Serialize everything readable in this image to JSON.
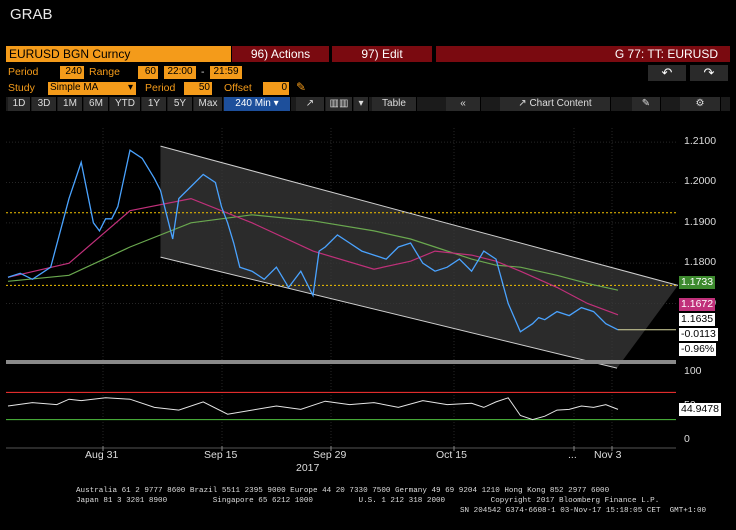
{
  "app": {
    "title": "GRAB"
  },
  "header": {
    "security": "EURUSD BGN Curncy",
    "actions_label": "96) Actions",
    "edit_label": "97) Edit",
    "graph_id": "G 77: TT: EURUSD"
  },
  "params": {
    "period_label": "Period",
    "period_value": "240",
    "range_label": "Range",
    "range_value": "60",
    "start_time": "22:00",
    "dash": "-",
    "end_time": "21:59",
    "study_label": "Study",
    "study_value": "Simple MA",
    "study_period_label": "Period",
    "study_period_value": "50",
    "offset_label": "Offset",
    "offset_value": "0"
  },
  "toolbar": {
    "ranges": [
      "1D",
      "3D",
      "1M",
      "6M",
      "YTD",
      "1Y",
      "5Y",
      "Max"
    ],
    "interval": "240 Min",
    "table_label": "Table",
    "chart_content_label": "Chart Content"
  },
  "colors": {
    "background": "#000000",
    "bloomberg_orange": "#f49b1a",
    "header_red": "#7a0a10",
    "price_line": "#4aa3ff",
    "ma_short": "#c0307a",
    "ma_long": "#6aa84f",
    "channel": "#cfcfcf",
    "hline_yellow": "#f2c200",
    "rsi_line": "#e6e6e6",
    "rsi_upper": "#ff3333",
    "rsi_lower": "#4fbf3f"
  },
  "chart_data": [
    {
      "type": "line",
      "panel": "price",
      "x_ticks": [
        "Aug 31",
        "Sep 15",
        "Sep 29",
        "Oct 15",
        "...",
        "Nov 3"
      ],
      "year_label": "2017",
      "y_ticks": [
        "1.2100",
        "1.2000",
        "1.1900",
        "1.1800",
        "1.1700"
      ],
      "ylim": [
        1.1565,
        1.2135
      ],
      "grid": true,
      "series": [
        {
          "role": "price",
          "x": [
            0,
            2,
            4,
            7,
            10,
            12,
            14,
            15,
            16,
            17,
            18,
            20,
            22,
            24,
            25,
            26,
            27,
            28,
            30,
            32,
            34,
            35,
            36,
            37,
            38,
            40,
            42,
            44,
            46,
            48,
            50,
            51,
            52,
            54,
            56,
            58,
            60,
            62,
            64,
            66,
            68,
            70,
            72,
            74,
            76,
            78,
            80,
            82,
            84,
            86,
            87,
            88,
            89,
            90,
            92,
            94,
            96,
            98,
            100
          ],
          "values": [
            1.1765,
            1.1775,
            1.176,
            1.179,
            1.196,
            1.205,
            1.19,
            1.188,
            1.191,
            1.191,
            1.194,
            1.208,
            1.206,
            1.201,
            1.198,
            1.192,
            1.186,
            1.196,
            1.199,
            1.202,
            1.2,
            1.194,
            1.19,
            1.185,
            1.179,
            1.178,
            1.176,
            1.179,
            1.174,
            1.178,
            1.172,
            1.183,
            1.184,
            1.187,
            1.185,
            1.183,
            1.182,
            1.181,
            1.184,
            1.185,
            1.18,
            1.178,
            1.179,
            1.181,
            1.178,
            1.183,
            1.181,
            1.17,
            1.163,
            1.165,
            1.1665,
            1.166,
            1.167,
            1.168,
            1.167,
            1.169,
            1.168,
            1.165,
            1.1635
          ]
        },
        {
          "role": "moving-average-short",
          "x": [
            0,
            10,
            20,
            30,
            40,
            50,
            60,
            66,
            70,
            76,
            80,
            84,
            90,
            95,
            100
          ],
          "values": [
            1.1765,
            1.18,
            1.193,
            1.196,
            1.19,
            1.183,
            1.1785,
            1.1805,
            1.183,
            1.182,
            1.1805,
            1.178,
            1.174,
            1.17,
            1.1672
          ]
        },
        {
          "role": "moving-average-long",
          "x": [
            0,
            10,
            20,
            30,
            40,
            50,
            60,
            66,
            70,
            76,
            80,
            84,
            90,
            95,
            100
          ],
          "values": [
            1.1755,
            1.177,
            1.184,
            1.19,
            1.192,
            1.1905,
            1.188,
            1.186,
            1.184,
            1.181,
            1.1795,
            1.179,
            1.177,
            1.175,
            1.1733
          ]
        }
      ],
      "channel": {
        "upper": [
          [
            25,
            1.209
          ],
          [
            100,
            1.1745
          ]
        ],
        "lower": [
          [
            25,
            1.1815
          ],
          [
            90,
            1.154
          ]
        ]
      },
      "horizontal_lines": [
        1.1925,
        1.1745
      ],
      "last_values": {
        "ma_long": "1.1733",
        "ma_short": "1.1672",
        "price": "1.1635",
        "change": "-0.0113",
        "change_pct": "-0.96%"
      }
    },
    {
      "type": "line",
      "panel": "oscillator",
      "y_ticks": [
        "100",
        "50",
        "0"
      ],
      "ylim": [
        0,
        100
      ],
      "levels": [
        70,
        30
      ],
      "last_value": "44.9478",
      "series": [
        {
          "role": "oscillator",
          "x": [
            0,
            4,
            8,
            10,
            12,
            16,
            20,
            24,
            28,
            32,
            36,
            40,
            44,
            48,
            52,
            56,
            60,
            64,
            68,
            72,
            76,
            78,
            80,
            82,
            84,
            86,
            88,
            90,
            92,
            94,
            96,
            98,
            100
          ],
          "values": [
            50,
            55,
            52,
            60,
            58,
            62,
            60,
            48,
            44,
            56,
            38,
            44,
            50,
            45,
            57,
            52,
            55,
            48,
            58,
            52,
            54,
            48,
            56,
            62,
            36,
            30,
            35,
            44,
            45,
            50,
            48,
            52,
            45
          ]
        }
      ]
    }
  ],
  "footer": {
    "line1": "Australia 61 2 9777 8600 Brazil 5511 2395 9000 Europe 44 20 7330 7500 Germany 49 69 9204 1210 Hong Kong 852 2977 6000",
    "line2": "Japan 81 3 3201 8900          Singapore 65 6212 1000          U.S. 1 212 318 2000          Copyright 2017 Bloomberg Finance L.P.",
    "line3": "SN 204542 G374-6608-1 03-Nov-17 15:18:05 CET  GMT+1:00"
  }
}
